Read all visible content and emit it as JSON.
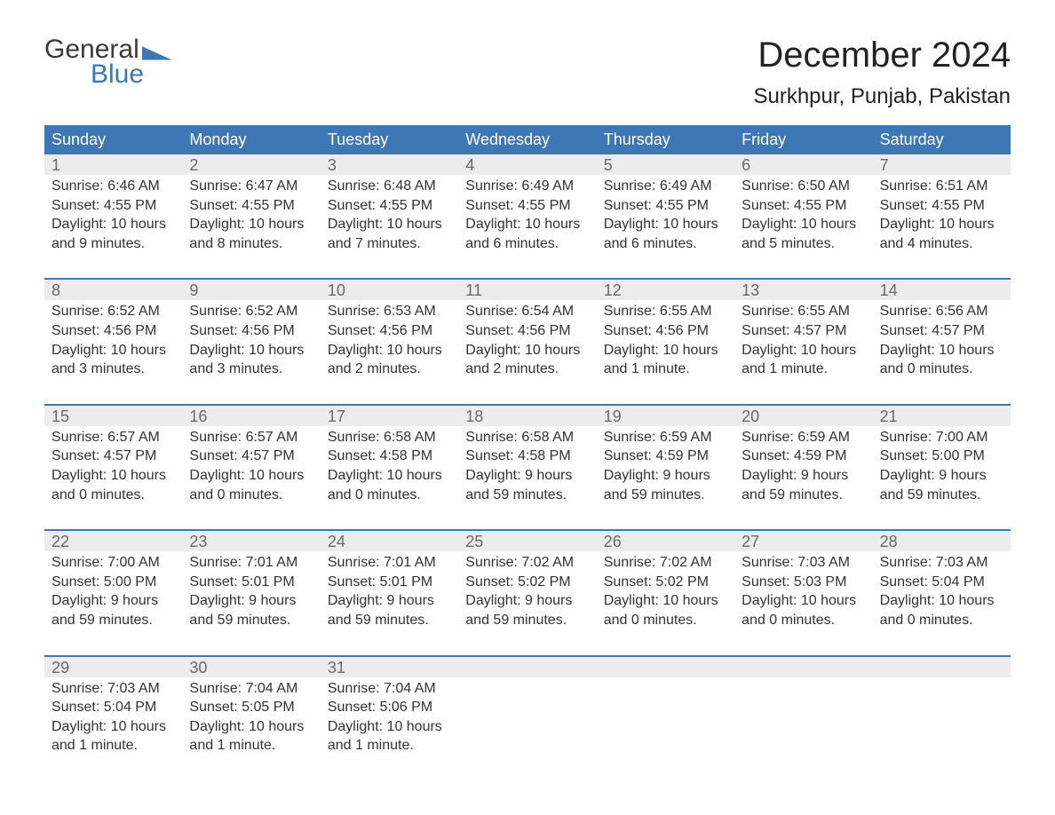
{
  "logo": {
    "line1": "General",
    "line2": "Blue"
  },
  "title": "December 2024",
  "location": "Surkhpur, Punjab, Pakistan",
  "colors": {
    "header_bg": "#3e77b5",
    "header_text": "#ffffff",
    "daynum_bg": "#ececec",
    "daynum_text": "#6a6a6a",
    "body_text": "#333333",
    "week_border": "#3e77b5",
    "page_bg": "#ffffff"
  },
  "typography": {
    "title_fontsize": 40,
    "location_fontsize": 24,
    "weekday_fontsize": 18,
    "daynum_fontsize": 18,
    "body_fontsize": 16
  },
  "weekdays": [
    "Sunday",
    "Monday",
    "Tuesday",
    "Wednesday",
    "Thursday",
    "Friday",
    "Saturday"
  ],
  "weeks": [
    [
      {
        "n": "1",
        "sr": "Sunrise: 6:46 AM",
        "ss": "Sunset: 4:55 PM",
        "d1": "Daylight: 10 hours",
        "d2": "and 9 minutes."
      },
      {
        "n": "2",
        "sr": "Sunrise: 6:47 AM",
        "ss": "Sunset: 4:55 PM",
        "d1": "Daylight: 10 hours",
        "d2": "and 8 minutes."
      },
      {
        "n": "3",
        "sr": "Sunrise: 6:48 AM",
        "ss": "Sunset: 4:55 PM",
        "d1": "Daylight: 10 hours",
        "d2": "and 7 minutes."
      },
      {
        "n": "4",
        "sr": "Sunrise: 6:49 AM",
        "ss": "Sunset: 4:55 PM",
        "d1": "Daylight: 10 hours",
        "d2": "and 6 minutes."
      },
      {
        "n": "5",
        "sr": "Sunrise: 6:49 AM",
        "ss": "Sunset: 4:55 PM",
        "d1": "Daylight: 10 hours",
        "d2": "and 6 minutes."
      },
      {
        "n": "6",
        "sr": "Sunrise: 6:50 AM",
        "ss": "Sunset: 4:55 PM",
        "d1": "Daylight: 10 hours",
        "d2": "and 5 minutes."
      },
      {
        "n": "7",
        "sr": "Sunrise: 6:51 AM",
        "ss": "Sunset: 4:55 PM",
        "d1": "Daylight: 10 hours",
        "d2": "and 4 minutes."
      }
    ],
    [
      {
        "n": "8",
        "sr": "Sunrise: 6:52 AM",
        "ss": "Sunset: 4:56 PM",
        "d1": "Daylight: 10 hours",
        "d2": "and 3 minutes."
      },
      {
        "n": "9",
        "sr": "Sunrise: 6:52 AM",
        "ss": "Sunset: 4:56 PM",
        "d1": "Daylight: 10 hours",
        "d2": "and 3 minutes."
      },
      {
        "n": "10",
        "sr": "Sunrise: 6:53 AM",
        "ss": "Sunset: 4:56 PM",
        "d1": "Daylight: 10 hours",
        "d2": "and 2 minutes."
      },
      {
        "n": "11",
        "sr": "Sunrise: 6:54 AM",
        "ss": "Sunset: 4:56 PM",
        "d1": "Daylight: 10 hours",
        "d2": "and 2 minutes."
      },
      {
        "n": "12",
        "sr": "Sunrise: 6:55 AM",
        "ss": "Sunset: 4:56 PM",
        "d1": "Daylight: 10 hours",
        "d2": "and 1 minute."
      },
      {
        "n": "13",
        "sr": "Sunrise: 6:55 AM",
        "ss": "Sunset: 4:57 PM",
        "d1": "Daylight: 10 hours",
        "d2": "and 1 minute."
      },
      {
        "n": "14",
        "sr": "Sunrise: 6:56 AM",
        "ss": "Sunset: 4:57 PM",
        "d1": "Daylight: 10 hours",
        "d2": "and 0 minutes."
      }
    ],
    [
      {
        "n": "15",
        "sr": "Sunrise: 6:57 AM",
        "ss": "Sunset: 4:57 PM",
        "d1": "Daylight: 10 hours",
        "d2": "and 0 minutes."
      },
      {
        "n": "16",
        "sr": "Sunrise: 6:57 AM",
        "ss": "Sunset: 4:57 PM",
        "d1": "Daylight: 10 hours",
        "d2": "and 0 minutes."
      },
      {
        "n": "17",
        "sr": "Sunrise: 6:58 AM",
        "ss": "Sunset: 4:58 PM",
        "d1": "Daylight: 10 hours",
        "d2": "and 0 minutes."
      },
      {
        "n": "18",
        "sr": "Sunrise: 6:58 AM",
        "ss": "Sunset: 4:58 PM",
        "d1": "Daylight: 9 hours",
        "d2": "and 59 minutes."
      },
      {
        "n": "19",
        "sr": "Sunrise: 6:59 AM",
        "ss": "Sunset: 4:59 PM",
        "d1": "Daylight: 9 hours",
        "d2": "and 59 minutes."
      },
      {
        "n": "20",
        "sr": "Sunrise: 6:59 AM",
        "ss": "Sunset: 4:59 PM",
        "d1": "Daylight: 9 hours",
        "d2": "and 59 minutes."
      },
      {
        "n": "21",
        "sr": "Sunrise: 7:00 AM",
        "ss": "Sunset: 5:00 PM",
        "d1": "Daylight: 9 hours",
        "d2": "and 59 minutes."
      }
    ],
    [
      {
        "n": "22",
        "sr": "Sunrise: 7:00 AM",
        "ss": "Sunset: 5:00 PM",
        "d1": "Daylight: 9 hours",
        "d2": "and 59 minutes."
      },
      {
        "n": "23",
        "sr": "Sunrise: 7:01 AM",
        "ss": "Sunset: 5:01 PM",
        "d1": "Daylight: 9 hours",
        "d2": "and 59 minutes."
      },
      {
        "n": "24",
        "sr": "Sunrise: 7:01 AM",
        "ss": "Sunset: 5:01 PM",
        "d1": "Daylight: 9 hours",
        "d2": "and 59 minutes."
      },
      {
        "n": "25",
        "sr": "Sunrise: 7:02 AM",
        "ss": "Sunset: 5:02 PM",
        "d1": "Daylight: 9 hours",
        "d2": "and 59 minutes."
      },
      {
        "n": "26",
        "sr": "Sunrise: 7:02 AM",
        "ss": "Sunset: 5:02 PM",
        "d1": "Daylight: 10 hours",
        "d2": "and 0 minutes."
      },
      {
        "n": "27",
        "sr": "Sunrise: 7:03 AM",
        "ss": "Sunset: 5:03 PM",
        "d1": "Daylight: 10 hours",
        "d2": "and 0 minutes."
      },
      {
        "n": "28",
        "sr": "Sunrise: 7:03 AM",
        "ss": "Sunset: 5:04 PM",
        "d1": "Daylight: 10 hours",
        "d2": "and 0 minutes."
      }
    ],
    [
      {
        "n": "29",
        "sr": "Sunrise: 7:03 AM",
        "ss": "Sunset: 5:04 PM",
        "d1": "Daylight: 10 hours",
        "d2": "and 1 minute."
      },
      {
        "n": "30",
        "sr": "Sunrise: 7:04 AM",
        "ss": "Sunset: 5:05 PM",
        "d1": "Daylight: 10 hours",
        "d2": "and 1 minute."
      },
      {
        "n": "31",
        "sr": "Sunrise: 7:04 AM",
        "ss": "Sunset: 5:06 PM",
        "d1": "Daylight: 10 hours",
        "d2": "and 1 minute."
      },
      {
        "n": "",
        "sr": "",
        "ss": "",
        "d1": "",
        "d2": ""
      },
      {
        "n": "",
        "sr": "",
        "ss": "",
        "d1": "",
        "d2": ""
      },
      {
        "n": "",
        "sr": "",
        "ss": "",
        "d1": "",
        "d2": ""
      },
      {
        "n": "",
        "sr": "",
        "ss": "",
        "d1": "",
        "d2": ""
      }
    ]
  ]
}
